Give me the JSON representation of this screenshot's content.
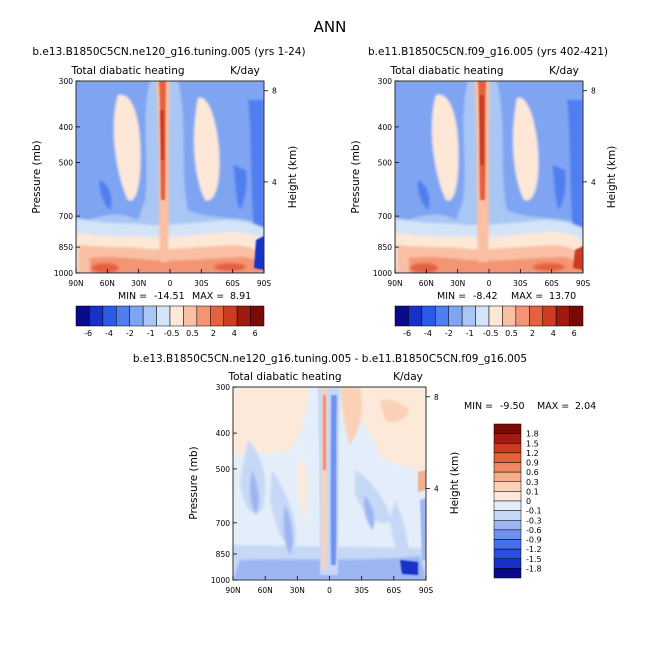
{
  "page_title": "ANN",
  "colors": {
    "ref_scale": [
      "#0a0a8a",
      "#1630c8",
      "#2a5ae6",
      "#4f7ef0",
      "#7ea4f2",
      "#a9c6f4",
      "#d3e3f8",
      "#fde8d8",
      "#f9c0a3",
      "#f39474",
      "#e6613f",
      "#cc3b22",
      "#a0190f",
      "#7a0a05"
    ],
    "diff_scale": [
      "#0a0a8a",
      "#1630c8",
      "#2a4fe0",
      "#4670ea",
      "#6f92f0",
      "#9cb6f2",
      "#c6d8f6",
      "#e4eefb",
      "#fde9da",
      "#fad0b6",
      "#f6ae8a",
      "#f18760",
      "#e4603b",
      "#c93b1f",
      "#a01c10",
      "#7a0a05"
    ]
  },
  "chart_data": [
    {
      "type": "heatmap",
      "title": "b.e13.B1850C5CN.ne120_g16.tuning.005 (yrs 1-24)",
      "subtitle_left": "Total diabatic heating",
      "subtitle_right": "K/day",
      "xlabel": "",
      "ylabel": "Pressure (mb)",
      "ylabel_right": "Height (km)",
      "x_ticks": [
        "90N",
        "60N",
        "30N",
        "0",
        "30S",
        "60S",
        "90S"
      ],
      "y_ticks": [
        "300",
        "400",
        "500",
        "700",
        "850",
        "1000"
      ],
      "y_right_ticks": [
        "8",
        "4"
      ],
      "ylim": [
        1000,
        300
      ],
      "min_label": "MIN =",
      "min_value": "-14.51",
      "max_label": "MAX =",
      "max_value": "8.91",
      "colorbar_levels": [
        "-6",
        "-4",
        "-2",
        "-1",
        "-0.5",
        "0.5",
        "2",
        "4",
        "6"
      ]
    },
    {
      "type": "heatmap",
      "title": "b.e11.B1850C5CN.f09_g16.005 (yrs 402-421)",
      "subtitle_left": "Total diabatic heating",
      "subtitle_right": "K/day",
      "xlabel": "",
      "ylabel": "Pressure (mb)",
      "ylabel_right": "Height (km)",
      "x_ticks": [
        "90N",
        "60N",
        "30N",
        "0",
        "30S",
        "60S",
        "90S"
      ],
      "y_ticks": [
        "300",
        "400",
        "500",
        "700",
        "850",
        "1000"
      ],
      "y_right_ticks": [
        "8",
        "4"
      ],
      "ylim": [
        1000,
        300
      ],
      "min_label": "MIN =",
      "min_value": "-8.42",
      "max_label": "MAX =",
      "max_value": "13.70",
      "colorbar_levels": [
        "-6",
        "-4",
        "-2",
        "-1",
        "-0.5",
        "0.5",
        "2",
        "4",
        "6"
      ]
    },
    {
      "type": "heatmap",
      "title": "b.e13.B1850C5CN.ne120_g16.tuning.005 - b.e11.B1850C5CN.f09_g16.005",
      "subtitle_left": "Total diabatic heating",
      "subtitle_right": "K/day",
      "xlabel": "",
      "ylabel": "Pressure (mb)",
      "ylabel_right": "Height (km)",
      "x_ticks": [
        "90N",
        "60N",
        "30N",
        "0",
        "30S",
        "60S",
        "90S"
      ],
      "y_ticks": [
        "300",
        "400",
        "500",
        "700",
        "850",
        "1000"
      ],
      "y_right_ticks": [
        "8",
        "4"
      ],
      "ylim": [
        1000,
        300
      ],
      "min_label": "MIN =",
      "min_value": "-9.50",
      "max_label": "MAX =",
      "max_value": "2.04",
      "colorbar_levels": [
        "1.8",
        "1.5",
        "1.2",
        "0.9",
        "0.6",
        "0.3",
        "0.1",
        "0",
        "-0.1",
        "-0.3",
        "-0.6",
        "-0.9",
        "-1.2",
        "-1.5",
        "-1.8"
      ]
    }
  ]
}
